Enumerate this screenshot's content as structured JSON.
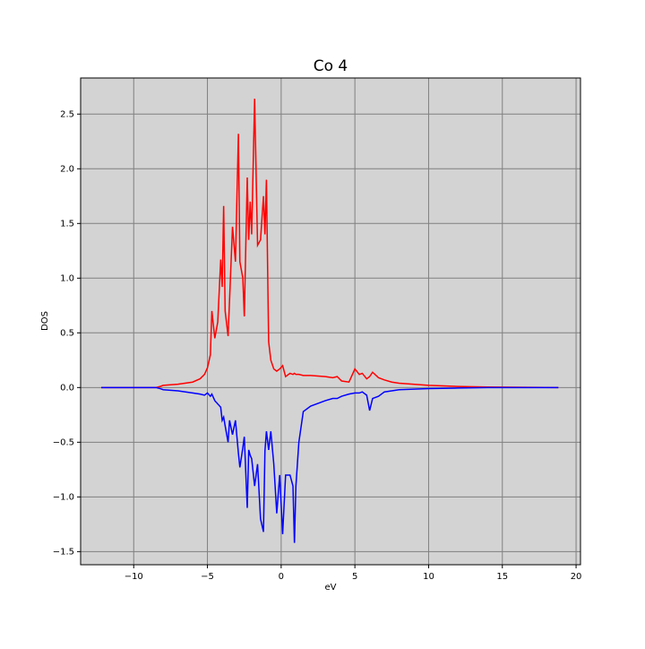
{
  "chart_data": {
    "type": "line",
    "title": "Co 4",
    "xlabel": "eV",
    "ylabel": "DOS",
    "x": [
      -12.2,
      -10,
      -8.5,
      -8.2,
      -8,
      -7,
      -6,
      -5.5,
      -5.2,
      -5,
      -4.8,
      -4.7,
      -4.5,
      -4.3,
      -4.1,
      -4.0,
      -3.9,
      -3.8,
      -3.6,
      -3.5,
      -3.3,
      -3.1,
      -2.9,
      -2.8,
      -2.6,
      -2.5,
      -2.3,
      -2.2,
      -2.1,
      -2.0,
      -1.8,
      -1.6,
      -1.4,
      -1.2,
      -1.1,
      -1.0,
      -0.85,
      -0.7,
      -0.5,
      -0.3,
      -0.1,
      0.1,
      0.3,
      0.6,
      0.8,
      0.9,
      1,
      1.2,
      1.5,
      2,
      3,
      3.5,
      3.8,
      4.1,
      4.6,
      5,
      5.3,
      5.5,
      5.8,
      6.0,
      6.2,
      6.6,
      7,
      7.5,
      8,
      10,
      12,
      14,
      16,
      18.8
    ],
    "series": [
      {
        "color": "#ff0000",
        "values": [
          0,
          0,
          0,
          0.01,
          0.02,
          0.03,
          0.05,
          0.08,
          0.12,
          0.18,
          0.3,
          0.7,
          0.45,
          0.6,
          1.17,
          0.92,
          1.66,
          0.7,
          0.47,
          0.8,
          1.47,
          1.15,
          2.32,
          1.15,
          1.0,
          0.65,
          1.92,
          1.35,
          1.7,
          1.4,
          2.64,
          1.3,
          1.35,
          1.75,
          1.4,
          1.9,
          0.42,
          0.25,
          0.17,
          0.15,
          0.17,
          0.2,
          0.1,
          0.13,
          0.12,
          0.13,
          0.12,
          0.12,
          0.11,
          0.11,
          0.1,
          0.09,
          0.1,
          0.06,
          0.05,
          0.17,
          0.12,
          0.13,
          0.08,
          0.1,
          0.14,
          0.09,
          0.07,
          0.05,
          0.04,
          0.02,
          0.01,
          0.005,
          0.003,
          0
        ]
      },
      {
        "color": "#0000ff",
        "values": [
          0,
          0,
          0,
          -0.01,
          -0.02,
          -0.03,
          -0.05,
          -0.06,
          -0.07,
          -0.05,
          -0.08,
          -0.06,
          -0.12,
          -0.15,
          -0.18,
          -0.3,
          -0.27,
          -0.35,
          -0.5,
          -0.3,
          -0.43,
          -0.3,
          -0.6,
          -0.73,
          -0.55,
          -0.45,
          -1.1,
          -0.57,
          -0.62,
          -0.65,
          -0.9,
          -0.7,
          -1.2,
          -1.32,
          -0.58,
          -0.4,
          -0.57,
          -0.4,
          -0.7,
          -1.15,
          -0.8,
          -1.34,
          -0.8,
          -0.8,
          -0.9,
          -1.42,
          -0.9,
          -0.5,
          -0.22,
          -0.17,
          -0.12,
          -0.1,
          -0.1,
          -0.08,
          -0.06,
          -0.05,
          -0.05,
          -0.04,
          -0.07,
          -0.21,
          -0.1,
          -0.08,
          -0.04,
          -0.03,
          -0.02,
          -0.01,
          -0.005,
          0,
          0,
          0
        ]
      }
    ],
    "xlim": [
      -13.6,
      20.3
    ],
    "xticks": [
      {
        "value": -10,
        "label": "−10"
      },
      {
        "value": -5,
        "label": "−5"
      },
      0,
      5,
      10,
      15,
      20
    ],
    "ylim": [
      -1.62,
      2.83
    ],
    "yticks": [
      {
        "value": -1.5,
        "label": "−1.5"
      },
      {
        "value": -1.0,
        "label": "−1.0"
      },
      {
        "value": -0.5,
        "label": "−0.5"
      },
      {
        "value": 0,
        "label": "0.0"
      },
      0.5,
      {
        "value": 1,
        "label": "1.0"
      },
      1.5,
      {
        "value": 2,
        "label": "2.0"
      },
      2.5
    ],
    "grid": true,
    "background": "#d3d3d3",
    "grid_color": "#808080"
  }
}
